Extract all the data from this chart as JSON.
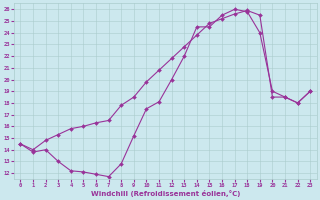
{
  "bg_color": "#cce8ee",
  "line_color": "#993399",
  "grid_color": "#aacccc",
  "xlabel": "Windchill (Refroidissement éolien,°C)",
  "xlim": [
    -0.5,
    23.5
  ],
  "ylim": [
    11.5,
    26.5
  ],
  "xticks": [
    0,
    1,
    2,
    3,
    4,
    5,
    6,
    7,
    8,
    9,
    10,
    11,
    12,
    13,
    14,
    15,
    16,
    17,
    18,
    19,
    20,
    21,
    22,
    23
  ],
  "yticks": [
    12,
    13,
    14,
    15,
    16,
    17,
    18,
    19,
    20,
    21,
    22,
    23,
    24,
    25,
    26
  ],
  "curve_bottom_x": [
    0,
    1,
    2,
    3,
    4,
    5,
    6,
    7,
    8,
    9,
    10,
    11,
    12,
    13,
    14,
    15,
    16,
    17,
    18,
    19,
    20,
    21,
    22,
    23
  ],
  "curve_bottom_y": [
    14.5,
    13.8,
    14.0,
    13.0,
    12.2,
    12.1,
    11.9,
    11.7,
    12.8,
    15.2,
    17.5,
    18.1,
    20.0,
    22.0,
    24.5,
    24.5,
    25.5,
    26.0,
    25.8,
    24.0,
    19.0,
    18.5,
    18.0,
    19.0
  ],
  "curve_top_x": [
    0,
    1,
    2,
    3,
    4,
    5,
    6,
    7,
    8,
    9,
    10,
    11,
    12,
    13,
    14,
    15,
    16,
    17,
    18,
    19,
    20,
    21,
    22,
    23
  ],
  "curve_top_y": [
    14.5,
    14.0,
    14.8,
    15.3,
    15.8,
    16.0,
    16.3,
    16.5,
    17.8,
    18.5,
    19.8,
    20.8,
    21.8,
    22.8,
    23.8,
    24.8,
    25.2,
    25.6,
    25.9,
    25.5,
    18.5,
    18.5,
    18.0,
    19.0
  ],
  "xlabel_fontsize": 5,
  "tick_fontsize": 4,
  "linewidth": 0.8,
  "markersize": 2.0
}
